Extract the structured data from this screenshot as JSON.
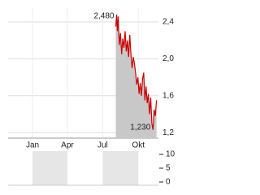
{
  "chart_data": [
    {
      "type": "line",
      "x": [
        230,
        232,
        234,
        236,
        239,
        242,
        245,
        248,
        251,
        254,
        257,
        260,
        263,
        266,
        269,
        272,
        275,
        278,
        281,
        284,
        287,
        290,
        293,
        296,
        299,
        302,
        305,
        308,
        311,
        314,
        317,
        320,
        323,
        326,
        329,
        332,
        335
      ],
      "values": [
        2.35,
        2.48,
        2.3,
        2.46,
        2.15,
        2.28,
        2.05,
        2.22,
        2.12,
        2.3,
        2.08,
        2.2,
        2.02,
        2.26,
        2.05,
        1.9,
        2.02,
        1.95,
        1.85,
        1.72,
        1.8,
        1.62,
        1.74,
        1.6,
        1.78,
        1.85,
        1.55,
        1.7,
        1.52,
        1.62,
        1.4,
        1.58,
        1.3,
        1.23,
        1.45,
        1.38,
        1.55
      ],
      "color": "#cc0000",
      "area_color": "#c8c8c8",
      "xlim": [
        -48,
        340
      ],
      "xticks": [
        {
          "value": 15,
          "label": "Jan"
        },
        {
          "value": 105,
          "label": "Apr"
        },
        {
          "value": 196,
          "label": "Jul"
        },
        {
          "value": 288,
          "label": "Okt"
        }
      ],
      "ylim": [
        1.14,
        2.55
      ],
      "yticks": [
        {
          "value": 1.2,
          "label": "1,2"
        },
        {
          "value": 1.6,
          "label": "1,6"
        },
        {
          "value": 2.0,
          "label": "2,0"
        },
        {
          "value": 2.4,
          "label": "2,4"
        }
      ],
      "high": {
        "value": 2.48,
        "label": "2,480"
      },
      "low": {
        "value": 1.23,
        "label": "1,230"
      },
      "grid": true
    },
    {
      "type": "bar",
      "ylim": [
        0,
        14.4
      ],
      "yticks": [
        0,
        5,
        10
      ]
    }
  ]
}
